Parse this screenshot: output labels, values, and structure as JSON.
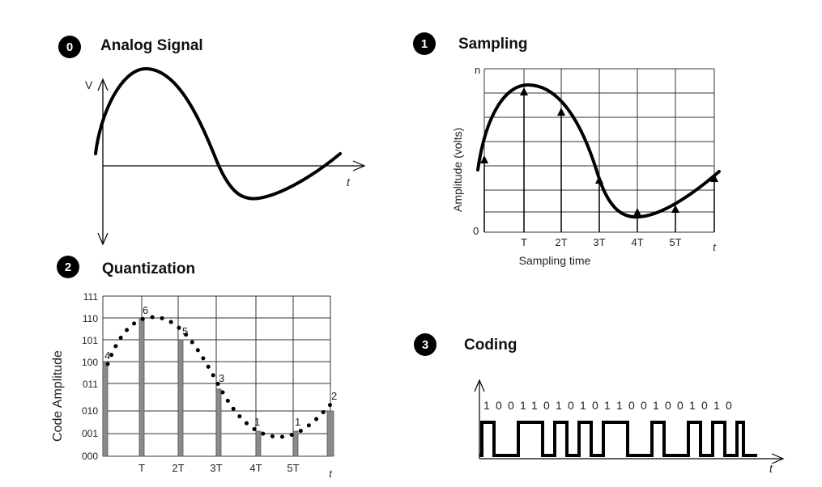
{
  "panels": {
    "analog": {
      "badge": "0",
      "title": "Analog Signal",
      "y_label": "V",
      "x_label": "t"
    },
    "sampling": {
      "badge": "1",
      "title": "Sampling",
      "y_label": "Amplitude (volts)",
      "y_top": "n",
      "y_zero": "0",
      "x_ticks": [
        "T",
        "2T",
        "3T",
        "4T",
        "5T",
        "t"
      ],
      "x_label": "Sampling time"
    },
    "quantization": {
      "badge": "2",
      "title": "Quantization",
      "y_label": "Code Amplitude",
      "levels": [
        "111",
        "110",
        "101",
        "100",
        "011",
        "010",
        "001",
        "000"
      ],
      "x_ticks": [
        "T",
        "2T",
        "3T",
        "4T",
        "5T",
        "t"
      ],
      "sample_codes": [
        4,
        6,
        5,
        3,
        1,
        1,
        2
      ]
    },
    "coding": {
      "badge": "3",
      "title": "Coding",
      "bits": [
        "1",
        "0",
        "0",
        "1",
        "1",
        "0",
        "1",
        "0",
        "1",
        "0",
        "1",
        "1",
        "0",
        "0",
        "1",
        "0",
        "0",
        "1",
        "0",
        "1",
        "0"
      ],
      "x_label": "t"
    }
  }
}
